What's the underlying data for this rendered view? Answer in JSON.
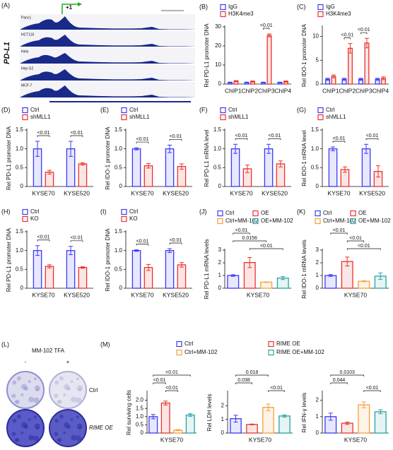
{
  "track_panel": {
    "panel": "(A)",
    "gene": "PD-L1",
    "tss": "+1",
    "tracks": [
      "Panc1",
      "HCT116",
      "Hela",
      "Hep G2",
      "MCF-7"
    ]
  },
  "photo_panel": {
    "panel": "(L)",
    "title": "MM-102 TFA",
    "columns": [
      "-",
      "+"
    ],
    "rows": [
      "Ctrl",
      "RIME OE"
    ]
  },
  "chart_data": [
    {
      "type": "bar",
      "panel": "(B)",
      "ylabel": "Rel PD-L1 promoter DNA",
      "categories": [
        "ChIP1",
        "ChIP2",
        "ChIP3",
        "ChIP4"
      ],
      "series": [
        {
          "name": "IgG",
          "color": "#3b3bf5",
          "values": [
            0.8,
            0.8,
            0.8,
            0.8
          ],
          "errors": [
            0.2,
            0.2,
            0.2,
            0.2
          ]
        },
        {
          "name": "H3K4me3",
          "color": "#e8332d",
          "values": [
            1.5,
            1.3,
            25.5,
            1.3
          ],
          "errors": [
            0.3,
            0.3,
            0.8,
            0.3
          ]
        }
      ],
      "ylim": [
        0,
        30
      ],
      "yticks": [
        0,
        10,
        20,
        30
      ],
      "annotations": [
        "<0.01"
      ]
    },
    {
      "type": "bar",
      "panel": "(C)",
      "ylabel": "Rel IDO-1 promoter DNA",
      "categories": [
        "ChIP1",
        "ChIP2",
        "ChIP3",
        "ChIP4"
      ],
      "series": [
        {
          "name": "IgG",
          "color": "#3b3bf5",
          "values": [
            1,
            1,
            1,
            1
          ],
          "errors": [
            0.2,
            0.2,
            0.2,
            0.2
          ]
        },
        {
          "name": "H3K4me3",
          "color": "#e8332d",
          "values": [
            1.6,
            7.5,
            8.6,
            1.2
          ],
          "errors": [
            0.3,
            1.0,
            1.0,
            0.3
          ]
        }
      ],
      "ylim": [
        0,
        12
      ],
      "yticks": [
        0,
        5,
        10
      ],
      "annotations": [
        "<0.01",
        "<0.01"
      ]
    },
    {
      "type": "bar",
      "panel": "(D)",
      "ylabel": "Rel PD-L1 promoter DNA",
      "categories": [
        "KYSE70",
        "KYSE520"
      ],
      "series": [
        {
          "name": "Ctrl",
          "color": "#3b3bf5",
          "values": [
            1,
            1
          ],
          "errors": [
            0.2,
            0.2
          ]
        },
        {
          "name": "shMLL1",
          "color": "#e8332d",
          "values": [
            0.38,
            0.6
          ],
          "errors": [
            0.05,
            0.03
          ]
        }
      ],
      "ylim": [
        0,
        1.5
      ],
      "yticks": [
        0,
        0.5,
        {
          "value": 1,
          "label": "1.0"
        },
        1.5
      ],
      "annotations": [
        "<0.01",
        "<0.01"
      ]
    },
    {
      "type": "bar",
      "panel": "(E)",
      "ylabel": "Rel IDO-1 promoter DNA",
      "categories": [
        "KYSE70",
        "KYSE520"
      ],
      "series": [
        {
          "name": "Ctrl",
          "color": "#3b3bf5",
          "values": [
            1,
            1
          ],
          "errors": [
            0.03,
            0.1
          ]
        },
        {
          "name": "shMLL1",
          "color": "#e8332d",
          "values": [
            0.55,
            0.53
          ],
          "errors": [
            0.06,
            0.07
          ]
        }
      ],
      "ylim": [
        0,
        1.5
      ],
      "yticks": [
        0,
        0.5,
        {
          "value": 1,
          "label": "1.0"
        },
        1.5
      ],
      "annotations": [
        "<0.01",
        "<0.01"
      ]
    },
    {
      "type": "bar",
      "panel": "(F)",
      "ylabel": "Rel PD-L1 mRNA level",
      "categories": [
        "KYSE70",
        "KYSE520"
      ],
      "series": [
        {
          "name": "Ctrl",
          "color": "#3b3bf5",
          "values": [
            1,
            1
          ],
          "errors": [
            0.12,
            0.12
          ]
        },
        {
          "name": "shMLL1",
          "color": "#e8332d",
          "values": [
            0.47,
            0.6
          ],
          "errors": [
            0.1,
            0.08
          ]
        }
      ],
      "ylim": [
        0,
        1.5
      ],
      "yticks": [
        0,
        0.5,
        {
          "value": 1,
          "label": "1.0"
        },
        1.5
      ],
      "annotations": [
        "<0.01",
        "<0.01"
      ]
    },
    {
      "type": "bar",
      "panel": "(G)",
      "ylabel": "Rel IDO-1 mRNA level",
      "categories": [
        "KYSE70",
        "KYSE520"
      ],
      "series": [
        {
          "name": "Ctrl",
          "color": "#3b3bf5",
          "values": [
            1,
            1
          ],
          "errors": [
            0.05,
            0.12
          ]
        },
        {
          "name": "shMLL1",
          "color": "#e8332d",
          "values": [
            0.45,
            0.4
          ],
          "errors": [
            0.07,
            0.15
          ]
        }
      ],
      "ylim": [
        0,
        1.5
      ],
      "yticks": [
        0,
        0.5,
        {
          "value": 1,
          "label": "1.0"
        },
        1.5
      ],
      "annotations": [
        "<0.01",
        "<0.01"
      ]
    },
    {
      "type": "bar",
      "panel": "(H)",
      "ylabel": "Rel PD-L1 promoter DNA",
      "categories": [
        "KYSE70",
        "KYSE520"
      ],
      "series": [
        {
          "name": "Ctrl",
          "color": "#3b3bf5",
          "values": [
            1,
            1
          ],
          "errors": [
            0.13,
            0.11
          ]
        },
        {
          "name": "KO",
          "color": "#e8332d",
          "values": [
            0.58,
            0.55
          ],
          "errors": [
            0.04,
            0.02
          ]
        }
      ],
      "ylim": [
        0,
        1.5
      ],
      "yticks": [
        0,
        0.5,
        {
          "value": 1,
          "label": "1.0"
        },
        1.5
      ],
      "annotations": [
        "<0.01",
        "<0.01"
      ]
    },
    {
      "type": "bar",
      "panel": "(I)",
      "ylabel": "Rel IDO-1 promoter DNA",
      "categories": [
        "KYSE70",
        "KYSE520"
      ],
      "series": [
        {
          "name": "Ctrl",
          "color": "#3b3bf5",
          "values": [
            1,
            1
          ],
          "errors": [
            0.02,
            0.05
          ]
        },
        {
          "name": "KO",
          "color": "#e8332d",
          "values": [
            0.55,
            0.62
          ],
          "errors": [
            0.08,
            0.06
          ]
        }
      ],
      "ylim": [
        0,
        1.5
      ],
      "yticks": [
        0,
        0.5,
        {
          "value": 1,
          "label": "1.0"
        },
        1.5
      ],
      "annotations": [
        "<0.01",
        "<0.01"
      ]
    },
    {
      "type": "bar",
      "panel": "(J)",
      "ylabel": "Rel PD-L1 mRNA levels",
      "categories": [
        "KYSE70"
      ],
      "series": [
        {
          "name": "Ctrl",
          "color": "#3b3bf5",
          "values": [
            1
          ],
          "errors": [
            0.06
          ]
        },
        {
          "name": "OE",
          "color": "#e8332d",
          "values": [
            2.02
          ],
          "errors": [
            0.4
          ]
        },
        {
          "name": "Ctrl+MM-102",
          "color": "#f5a03a",
          "values": [
            0.48
          ],
          "errors": [
            0.02
          ]
        },
        {
          "name": "OE+MM-102",
          "color": "#2aa3a3",
          "values": [
            0.8
          ],
          "errors": [
            0.12
          ]
        }
      ],
      "ylim": [
        0,
        3
      ],
      "yticks": [
        0,
        1,
        2,
        3
      ],
      "annotations": [
        "<0.01",
        "0.0156",
        "<0.01"
      ]
    },
    {
      "type": "bar",
      "panel": "(K)",
      "ylabel": "Rel IDO-1 mRNA levels",
      "categories": [
        "KYSE70"
      ],
      "series": [
        {
          "name": "Ctrl",
          "color": "#3b3bf5",
          "values": [
            1
          ],
          "errors": [
            0.07
          ]
        },
        {
          "name": "OE",
          "color": "#e8332d",
          "values": [
            2.1
          ],
          "errors": [
            0.35
          ]
        },
        {
          "name": "Ctrl+MM-102",
          "color": "#f5a03a",
          "values": [
            0.55
          ],
          "errors": [
            0.03
          ]
        },
        {
          "name": "OE+MM-102",
          "color": "#2aa3a3",
          "values": [
            0.95
          ],
          "errors": [
            0.25
          ]
        }
      ],
      "ylim": [
        0,
        3
      ],
      "yticks": [
        0,
        1,
        2,
        3
      ],
      "annotations": [
        "<0.01",
        "<0.01",
        "<0.01"
      ]
    },
    {
      "type": "bar",
      "panel": "(M)",
      "ylabel": "Rel surviving cells",
      "categories": [
        "KYSE70"
      ],
      "series": [
        {
          "name": "Ctrl",
          "color": "#3b3bf5",
          "values": [
            1
          ],
          "errors": [
            0.13
          ]
        },
        {
          "name": "RIME OE",
          "color": "#e8332d",
          "values": [
            1.83
          ],
          "errors": [
            0.12
          ]
        },
        {
          "name": "Ctrl+MM-102",
          "color": "#f5a03a",
          "values": [
            0.18
          ],
          "errors": [
            0.03
          ]
        },
        {
          "name": "RIME OE+MM-102",
          "color": "#2aa3a3",
          "values": [
            1.1
          ],
          "errors": [
            0.08
          ]
        }
      ],
      "ylim": [
        0,
        2.5
      ],
      "yticks": [
        0,
        0.5,
        {
          "value": 1,
          "label": "1.0"
        },
        1.5,
        {
          "value": 2,
          "label": "2.0"
        }
      ],
      "annotations": [
        "<0.01",
        "<0.01",
        "<0.01"
      ]
    },
    {
      "type": "bar",
      "ylabel": "Rel LDH levels",
      "categories": [
        "KYSE70"
      ],
      "series": [
        {
          "color": "#3b3bf5",
          "values": [
            1.05
          ],
          "errors": [
            0.25
          ]
        },
        {
          "color": "#e8332d",
          "values": [
            0.63
          ],
          "errors": [
            0.03
          ]
        },
        {
          "color": "#f5a03a",
          "values": [
            1.88
          ],
          "errors": [
            0.25
          ]
        },
        {
          "color": "#2aa3a3",
          "values": [
            1.25
          ],
          "errors": [
            0.08
          ]
        }
      ],
      "ylim": [
        0,
        3
      ],
      "yticks": [
        0,
        1,
        2
      ],
      "annotations": [
        "0.018",
        "0.038",
        "<0.01"
      ]
    },
    {
      "type": "bar",
      "ylabel": "Rel IFN-γ levels",
      "categories": [
        "KYSE70"
      ],
      "series": [
        {
          "color": "#3b3bf5",
          "values": [
            1
          ],
          "errors": [
            0.22
          ]
        },
        {
          "color": "#e8332d",
          "values": [
            0.6
          ],
          "errors": [
            0.07
          ]
        },
        {
          "color": "#f5a03a",
          "values": [
            1.72
          ],
          "errors": [
            0.18
          ]
        },
        {
          "color": "#2aa3a3",
          "values": [
            1.3
          ],
          "errors": [
            0.12
          ]
        }
      ],
      "ylim": [
        0,
        2.5
      ],
      "yticks": [
        0,
        1,
        2
      ],
      "annotations": [
        "0.0103",
        "0.044",
        "<0.01"
      ]
    }
  ]
}
